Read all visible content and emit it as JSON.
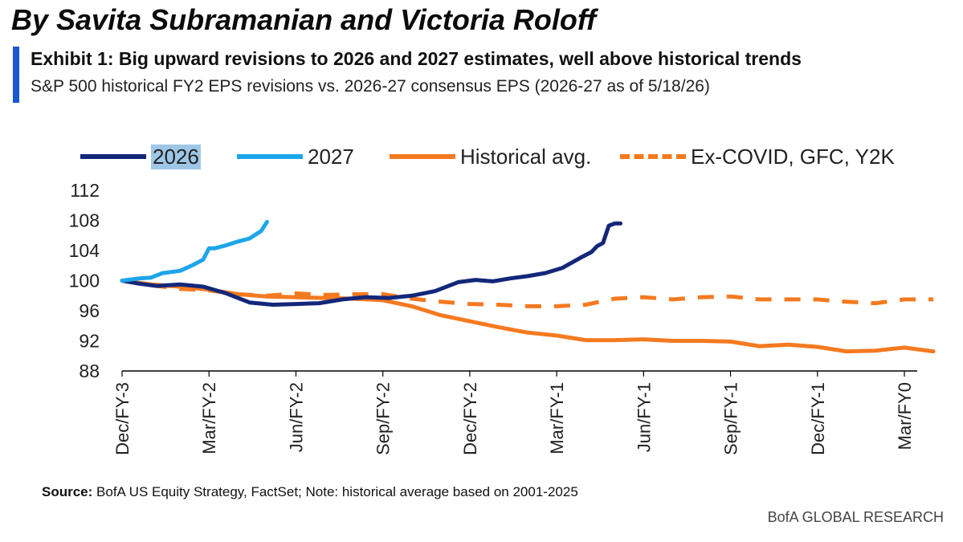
{
  "header": {
    "byline": "By Savita Subramanian and Victoria Roloff",
    "title": "Exhibit 1: Big upward revisions to 2026 and 2027 estimates, well above historical trends",
    "subtitle": "S&P 500 historical FY2 EPS revisions vs. 2026-27 consensus EPS (2026-27 as of 5/18/26)"
  },
  "footer": {
    "source_label": "Source:",
    "source_text": " BofA US Equity Strategy, FactSet; Note: historical average based on 2001-2025",
    "brand": "BofA GLOBAL RESEARCH"
  },
  "colors": {
    "accent_bar": "#1a56d6",
    "series_2026": "#13277a",
    "series_2027": "#1ea5ea",
    "historical": "#f47a20",
    "axis": "#000000"
  },
  "chart_data": {
    "type": "line",
    "title": "Exhibit 1: Big upward revisions to 2026 and 2027 estimates, well above historical trends",
    "subtitle": "S&P 500 historical FY2 EPS revisions vs. 2026-27 consensus EPS (2026-27 as of 5/18/26)",
    "xlabel": "",
    "ylabel": "",
    "ylim": [
      88,
      112
    ],
    "yticks": [
      88,
      92,
      96,
      100,
      104,
      108,
      112
    ],
    "xlim": [
      0,
      15
    ],
    "xticks": [
      {
        "pos": 0,
        "label": "Dec/FY-3"
      },
      {
        "pos": 1.5,
        "label": "Mar/FY-2"
      },
      {
        "pos": 3,
        "label": "Jun/FY-2"
      },
      {
        "pos": 4.5,
        "label": "Sep/FY-2"
      },
      {
        "pos": 6,
        "label": "Dec/FY-2"
      },
      {
        "pos": 7.5,
        "label": "Mar/FY-1"
      },
      {
        "pos": 9,
        "label": "Jun/FY-1"
      },
      {
        "pos": 10.5,
        "label": "Sep/FY-1"
      },
      {
        "pos": 12,
        "label": "Dec/FY-1"
      },
      {
        "pos": 13.5,
        "label": "Mar/FY0"
      }
    ],
    "grid": false,
    "legend": "top",
    "series": [
      {
        "name": "2026",
        "style": "solid",
        "color": "#13277a",
        "highlight": true,
        "x": [
          0,
          0.3,
          0.6,
          1.0,
          1.4,
          1.8,
          2.2,
          2.6,
          3.0,
          3.4,
          3.8,
          4.2,
          4.6,
          5.0,
          5.4,
          5.8,
          6.1,
          6.4,
          6.7,
          7.0,
          7.3,
          7.6,
          7.9,
          8.1,
          8.2,
          8.3,
          8.4,
          8.5,
          8.6
        ],
        "y": [
          100.0,
          99.6,
          99.3,
          99.5,
          99.2,
          98.3,
          97.1,
          96.8,
          96.9,
          97.0,
          97.5,
          97.8,
          97.7,
          98.0,
          98.6,
          99.8,
          100.1,
          99.9,
          100.3,
          100.6,
          101.0,
          101.7,
          103.0,
          103.8,
          104.6,
          105.0,
          107.3,
          107.6,
          107.6
        ]
      },
      {
        "name": "2027",
        "style": "solid",
        "color": "#1ea5ea",
        "x": [
          0,
          0.3,
          0.5,
          0.7,
          1.0,
          1.2,
          1.4,
          1.5,
          1.6,
          1.8,
          2.0,
          2.2,
          2.4,
          2.5
        ],
        "y": [
          100.0,
          100.3,
          100.4,
          101.0,
          101.3,
          102.0,
          102.8,
          104.3,
          104.3,
          104.7,
          105.2,
          105.6,
          106.6,
          107.8
        ]
      },
      {
        "name": "Historical avg.",
        "style": "solid",
        "color": "#f47a20",
        "x": [
          0,
          0.5,
          1.0,
          1.5,
          2.0,
          2.5,
          3.0,
          3.5,
          4.0,
          4.5,
          5.0,
          5.5,
          6.0,
          6.5,
          7.0,
          7.5,
          8.0,
          8.5,
          9.0,
          9.5,
          10.0,
          10.5,
          11.0,
          11.5,
          12.0,
          12.5,
          13.0,
          13.5,
          14.0
        ],
        "y": [
          100.0,
          99.5,
          99.2,
          98.8,
          98.2,
          97.9,
          97.8,
          97.7,
          97.6,
          97.4,
          96.6,
          95.4,
          94.6,
          93.8,
          93.1,
          92.7,
          92.1,
          92.1,
          92.2,
          92.0,
          92.0,
          91.9,
          91.3,
          91.5,
          91.2,
          90.6,
          90.7,
          91.1,
          90.6
        ]
      },
      {
        "name": "Ex-COVID, GFC, Y2K",
        "style": "dashed",
        "color": "#f47a20",
        "x": [
          0,
          0.5,
          1.0,
          1.5,
          2.0,
          2.5,
          3.0,
          3.5,
          4.0,
          4.5,
          5.0,
          5.5,
          6.0,
          6.5,
          7.0,
          7.5,
          8.0,
          8.5,
          9.0,
          9.5,
          10.0,
          10.5,
          11.0,
          11.5,
          12.0,
          12.5,
          13.0,
          13.5,
          14.0
        ],
        "y": [
          100.0,
          99.4,
          98.9,
          98.7,
          98.2,
          98.0,
          98.3,
          98.1,
          98.2,
          98.2,
          97.6,
          97.2,
          96.9,
          96.8,
          96.6,
          96.6,
          96.8,
          97.6,
          97.8,
          97.5,
          97.8,
          97.9,
          97.5,
          97.5,
          97.5,
          97.2,
          97.0,
          97.5,
          97.5
        ]
      }
    ]
  }
}
